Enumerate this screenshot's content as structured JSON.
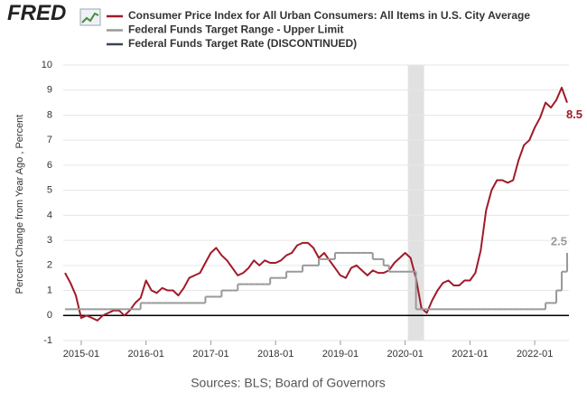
{
  "chart_data": {
    "type": "line",
    "logo": "FRED",
    "y_label": "Percent Change from Year Ago , Percent",
    "source": "Sources: BLS; Board of Governors",
    "x": [
      "2014-10",
      "2014-11",
      "2014-12",
      "2015-01",
      "2015-02",
      "2015-03",
      "2015-04",
      "2015-05",
      "2015-06",
      "2015-07",
      "2015-08",
      "2015-09",
      "2015-10",
      "2015-11",
      "2015-12",
      "2016-01",
      "2016-02",
      "2016-03",
      "2016-04",
      "2016-05",
      "2016-06",
      "2016-07",
      "2016-08",
      "2016-09",
      "2016-10",
      "2016-11",
      "2016-12",
      "2017-01",
      "2017-02",
      "2017-03",
      "2017-04",
      "2017-05",
      "2017-06",
      "2017-07",
      "2017-08",
      "2017-09",
      "2017-10",
      "2017-11",
      "2017-12",
      "2018-01",
      "2018-02",
      "2018-03",
      "2018-04",
      "2018-05",
      "2018-06",
      "2018-07",
      "2018-08",
      "2018-09",
      "2018-10",
      "2018-11",
      "2018-12",
      "2019-01",
      "2019-02",
      "2019-03",
      "2019-04",
      "2019-05",
      "2019-06",
      "2019-07",
      "2019-08",
      "2019-09",
      "2019-10",
      "2019-11",
      "2019-12",
      "2020-01",
      "2020-02",
      "2020-03",
      "2020-04",
      "2020-05",
      "2020-06",
      "2020-07",
      "2020-08",
      "2020-09",
      "2020-10",
      "2020-11",
      "2020-12",
      "2021-01",
      "2021-02",
      "2021-03",
      "2021-04",
      "2021-05",
      "2021-06",
      "2021-07",
      "2021-08",
      "2021-09",
      "2021-10",
      "2021-11",
      "2021-12",
      "2022-01",
      "2022-02",
      "2022-03",
      "2022-04",
      "2022-05",
      "2022-06",
      "2022-07"
    ],
    "series": [
      {
        "name": "Consumer Price Index for All Urban Consumers: All Items in U.S. City Average",
        "color": "#a11a28",
        "style": "line",
        "values": [
          1.7,
          1.3,
          0.8,
          -0.1,
          0.0,
          -0.1,
          -0.2,
          0.0,
          0.1,
          0.2,
          0.2,
          0.0,
          0.2,
          0.5,
          0.7,
          1.4,
          1.0,
          0.9,
          1.1,
          1.0,
          1.0,
          0.8,
          1.1,
          1.5,
          1.6,
          1.7,
          2.1,
          2.5,
          2.7,
          2.4,
          2.2,
          1.9,
          1.6,
          1.7,
          1.9,
          2.2,
          2.0,
          2.2,
          2.1,
          2.1,
          2.2,
          2.4,
          2.5,
          2.8,
          2.9,
          2.9,
          2.7,
          2.3,
          2.5,
          2.2,
          1.9,
          1.6,
          1.5,
          1.9,
          2.0,
          1.8,
          1.6,
          1.8,
          1.7,
          1.7,
          1.8,
          2.1,
          2.3,
          2.5,
          2.3,
          1.5,
          0.3,
          0.1,
          0.6,
          1.0,
          1.3,
          1.4,
          1.2,
          1.2,
          1.4,
          1.4,
          1.7,
          2.6,
          4.2,
          5.0,
          5.4,
          5.4,
          5.3,
          5.4,
          6.2,
          6.8,
          7.0,
          7.5,
          7.9,
          8.5,
          8.3,
          8.6,
          9.1,
          8.5
        ]
      },
      {
        "name": "Federal Funds Target Range - Upper Limit",
        "color": "#999999",
        "style": "step",
        "values": [
          0.25,
          0.25,
          0.25,
          0.25,
          0.25,
          0.25,
          0.25,
          0.25,
          0.25,
          0.25,
          0.25,
          0.25,
          0.25,
          0.25,
          0.5,
          0.5,
          0.5,
          0.5,
          0.5,
          0.5,
          0.5,
          0.5,
          0.5,
          0.5,
          0.5,
          0.5,
          0.75,
          0.75,
          0.75,
          1,
          1,
          1,
          1.25,
          1.25,
          1.25,
          1.25,
          1.25,
          1.25,
          1.5,
          1.5,
          1.5,
          1.75,
          1.75,
          1.75,
          2,
          2,
          2,
          2.25,
          2.25,
          2.25,
          2.5,
          2.5,
          2.5,
          2.5,
          2.5,
          2.5,
          2.5,
          2.25,
          2.25,
          2,
          1.75,
          1.75,
          1.75,
          1.75,
          1.75,
          0.25,
          0.25,
          0.25,
          0.25,
          0.25,
          0.25,
          0.25,
          0.25,
          0.25,
          0.25,
          0.25,
          0.25,
          0.25,
          0.25,
          0.25,
          0.25,
          0.25,
          0.25,
          0.25,
          0.25,
          0.25,
          0.25,
          0.25,
          0.25,
          0.5,
          0.5,
          1,
          1.75,
          2.5
        ]
      },
      {
        "name": "Federal Funds Target Rate (DISCONTINUED)",
        "color": "#3b4455",
        "style": "line"
      }
    ],
    "recession": [
      "2020-02",
      "2020-04"
    ],
    "xlim": [
      "2014-10",
      "2022-07"
    ],
    "xticks": [
      "2015-01",
      "2016-01",
      "2017-01",
      "2018-01",
      "2019-01",
      "2020-01",
      "2021-01",
      "2022-01"
    ],
    "ylim": [
      -1,
      10
    ],
    "yticks": [
      -1,
      0,
      1,
      2,
      3,
      4,
      5,
      6,
      7,
      8,
      9,
      10
    ],
    "grid": true,
    "zero_line": true
  }
}
